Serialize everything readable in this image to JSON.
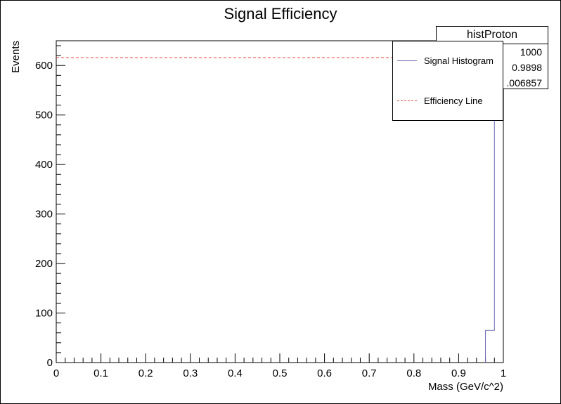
{
  "chart_data": {
    "type": "bar",
    "title": "Signal Efficiency",
    "xlabel": "Mass (GeV/c^2)",
    "ylabel": "Events",
    "xlim": [
      0,
      1
    ],
    "ylim": [
      0,
      650
    ],
    "x_ticks": [
      "0",
      "0.1",
      "0.2",
      "0.3",
      "0.4",
      "0.5",
      "0.6",
      "0.7",
      "0.8",
      "0.9",
      "1"
    ],
    "y_ticks": [
      "0",
      "100",
      "200",
      "300",
      "400",
      "500",
      "600"
    ],
    "histogram": {
      "name": "Signal Histogram",
      "color": "#6a6ab4",
      "bins": [
        {
          "low": 0.96,
          "high": 0.98,
          "value": 65
        },
        {
          "low": 0.98,
          "high": 1.0,
          "value": 1000
        }
      ]
    },
    "efficiency_line": {
      "name": "Efficiency Line",
      "color": "#e8463c",
      "y": 616
    },
    "stats": {
      "title": "histProton",
      "values": [
        "1000",
        "0.9898",
        ".006857"
      ]
    }
  }
}
